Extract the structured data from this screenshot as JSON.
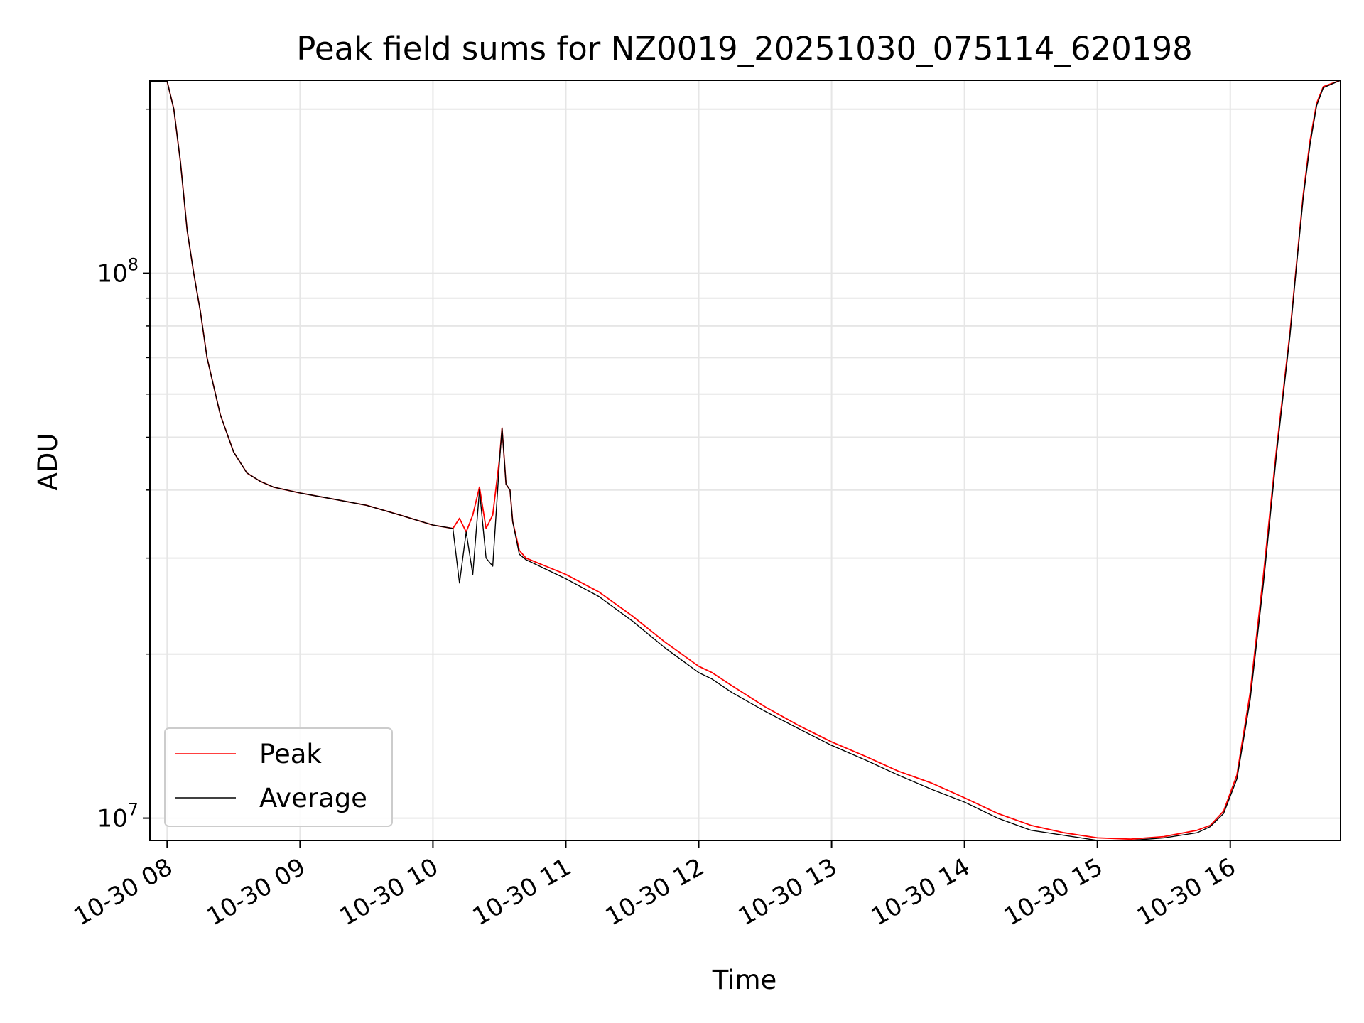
{
  "chart_data": {
    "type": "line",
    "title": "Peak field sums for NZ0019_20251030_075114_620198",
    "xlabel": "Time",
    "ylabel": "ADU",
    "yscale": "log",
    "xlim": [
      7.87,
      16.83
    ],
    "ylim": [
      9100000,
      226000000
    ],
    "grid": true,
    "x_ticks": [
      {
        "value": 8,
        "label": "10-30 08"
      },
      {
        "value": 9,
        "label": "10-30 09"
      },
      {
        "value": 10,
        "label": "10-30 10"
      },
      {
        "value": 11,
        "label": "10-30 11"
      },
      {
        "value": 12,
        "label": "10-30 12"
      },
      {
        "value": 13,
        "label": "10-30 13"
      },
      {
        "value": 14,
        "label": "10-30 14"
      },
      {
        "value": 15,
        "label": "10-30 15"
      },
      {
        "value": 16,
        "label": "10-30 16"
      }
    ],
    "y_major_ticks": [
      {
        "value": 10000000,
        "base": "10",
        "exp": "7"
      },
      {
        "value": 100000000,
        "base": "10",
        "exp": "8"
      }
    ],
    "y_minor_ticks": [
      20000000,
      30000000,
      40000000,
      50000000,
      60000000,
      70000000,
      80000000,
      90000000,
      200000000
    ],
    "legend_position": "lower-left",
    "series": [
      {
        "name": "Peak",
        "color": "#ff0000",
        "x": [
          7.87,
          8.0,
          8.05,
          8.1,
          8.15,
          8.2,
          8.25,
          8.3,
          8.4,
          8.5,
          8.6,
          8.7,
          8.8,
          9.0,
          9.25,
          9.5,
          9.75,
          10.0,
          10.15,
          10.2,
          10.25,
          10.3,
          10.35,
          10.4,
          10.45,
          10.5,
          10.52,
          10.55,
          10.58,
          10.6,
          10.65,
          10.7,
          11.0,
          11.25,
          11.5,
          11.75,
          12.0,
          12.1,
          12.25,
          12.5,
          12.75,
          13.0,
          13.25,
          13.5,
          13.75,
          14.0,
          14.25,
          14.5,
          14.75,
          15.0,
          15.25,
          15.5,
          15.75,
          15.85,
          15.95,
          16.05,
          16.15,
          16.25,
          16.35,
          16.45,
          16.5,
          16.55,
          16.6,
          16.65,
          16.7,
          16.83
        ],
        "y": [
          225000000,
          225000000,
          200000000,
          160000000,
          120000000,
          100000000,
          85000000,
          70000000,
          55000000,
          47000000,
          43000000,
          41500000,
          40500000,
          39500000,
          38500000,
          37500000,
          36000000,
          34500000,
          34000000,
          35500000,
          33500000,
          36000000,
          40500000,
          34000000,
          36000000,
          45500000,
          52000000,
          41000000,
          40000000,
          35000000,
          31000000,
          30000000,
          28000000,
          26000000,
          23500000,
          21000000,
          19000000,
          18500000,
          17500000,
          16000000,
          14800000,
          13800000,
          13000000,
          12200000,
          11600000,
          10900000,
          10200000,
          9700000,
          9400000,
          9200000,
          9150000,
          9250000,
          9500000,
          9700000,
          10300000,
          12000000,
          17000000,
          28000000,
          48000000,
          78000000,
          105000000,
          140000000,
          175000000,
          205000000,
          220000000,
          226000000
        ]
      },
      {
        "name": "Average",
        "color": "#000000",
        "x": [
          7.87,
          8.0,
          8.05,
          8.1,
          8.15,
          8.2,
          8.25,
          8.3,
          8.4,
          8.5,
          8.6,
          8.7,
          8.8,
          9.0,
          9.25,
          9.5,
          9.75,
          10.0,
          10.15,
          10.2,
          10.25,
          10.3,
          10.35,
          10.4,
          10.45,
          10.5,
          10.52,
          10.55,
          10.58,
          10.6,
          10.65,
          10.7,
          11.0,
          11.25,
          11.5,
          11.75,
          12.0,
          12.1,
          12.25,
          12.5,
          12.75,
          13.0,
          13.25,
          13.5,
          13.75,
          14.0,
          14.25,
          14.5,
          14.75,
          15.0,
          15.25,
          15.5,
          15.75,
          15.85,
          15.95,
          16.05,
          16.15,
          16.25,
          16.35,
          16.45,
          16.5,
          16.55,
          16.6,
          16.65,
          16.7,
          16.83
        ],
        "y": [
          225000000,
          225000000,
          200000000,
          160000000,
          120000000,
          100000000,
          85000000,
          70000000,
          55000000,
          47000000,
          43000000,
          41500000,
          40500000,
          39500000,
          38500000,
          37500000,
          36000000,
          34500000,
          34000000,
          27000000,
          33500000,
          28000000,
          40000000,
          30000000,
          29000000,
          45000000,
          52000000,
          41000000,
          40000000,
          35000000,
          30500000,
          29800000,
          27500000,
          25500000,
          23000000,
          20500000,
          18500000,
          18000000,
          17000000,
          15700000,
          14600000,
          13600000,
          12800000,
          12000000,
          11300000,
          10700000,
          10000000,
          9500000,
          9300000,
          9100000,
          9100000,
          9200000,
          9400000,
          9650000,
          10200000,
          11800000,
          16500000,
          27000000,
          47000000,
          77000000,
          104000000,
          138000000,
          172000000,
          203000000,
          219000000,
          226000000
        ]
      }
    ]
  }
}
